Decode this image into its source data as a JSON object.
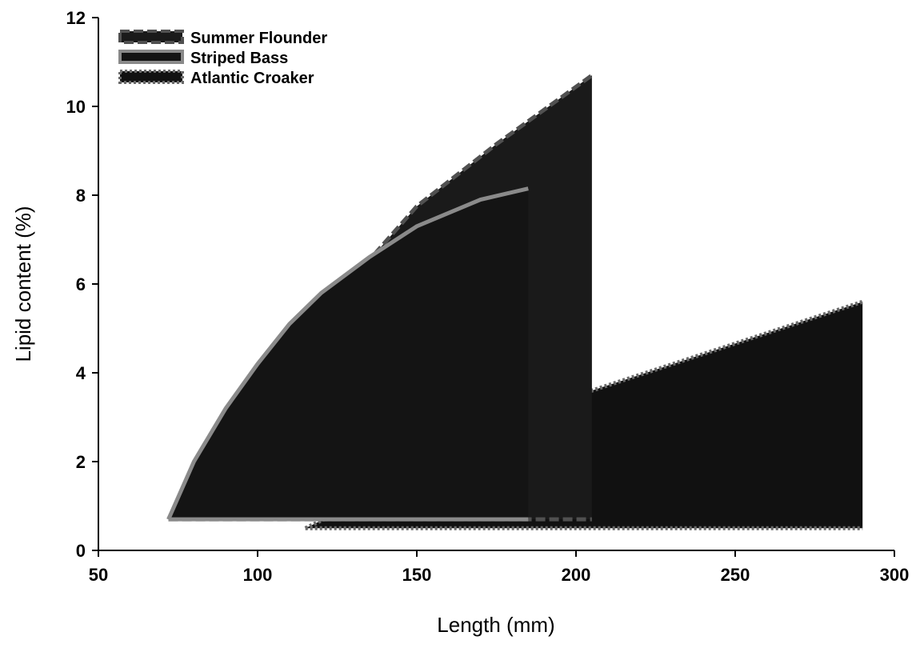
{
  "chart_data": {
    "type": "area",
    "x_label": "Length (mm)",
    "y_label": "Lipid content (%)",
    "xlim": [
      50,
      300
    ],
    "xticks": [
      50,
      100,
      150,
      200,
      250,
      300
    ],
    "ylim": [
      0,
      12
    ],
    "yticks": [
      0,
      2,
      4,
      6,
      8,
      10,
      12
    ],
    "legend": "upper-left",
    "series": [
      {
        "name": "Atlantic Croaker",
        "color": "#111111",
        "outline": "#6a6a6a",
        "dash": "dotted",
        "x": [
          115,
          205,
          290
        ],
        "values": [
          0.5,
          3.6,
          5.6
        ],
        "lower": [
          0.5,
          0.5,
          0.5
        ]
      },
      {
        "name": "Summer Flounder",
        "color": "#1a1a1a",
        "outline": "#505050",
        "dash": "dashed",
        "x": [
          72,
          80,
          90,
          100,
          110,
          120,
          134,
          150,
          175,
          205
        ],
        "values": [
          0.7,
          1.9,
          3.1,
          4.1,
          5.0,
          5.7,
          6.45,
          7.75,
          9.15,
          10.7
        ],
        "lower": [
          0.7,
          0.7,
          0.7,
          0.7,
          0.7,
          0.7,
          0.7,
          0.7,
          0.7,
          0.7
        ]
      },
      {
        "name": "Striped Bass",
        "color": "#141414",
        "outline": "#8a8a8a",
        "dash": "solid",
        "x": [
          72,
          80,
          90,
          100,
          110,
          120,
          135,
          150,
          170,
          185
        ],
        "values": [
          0.7,
          2.0,
          3.2,
          4.2,
          5.1,
          5.8,
          6.6,
          7.3,
          7.9,
          8.15
        ],
        "lower": [
          0.7,
          0.7,
          0.7,
          0.7,
          0.7,
          0.7,
          0.7,
          0.7,
          0.7,
          0.7
        ]
      }
    ]
  }
}
